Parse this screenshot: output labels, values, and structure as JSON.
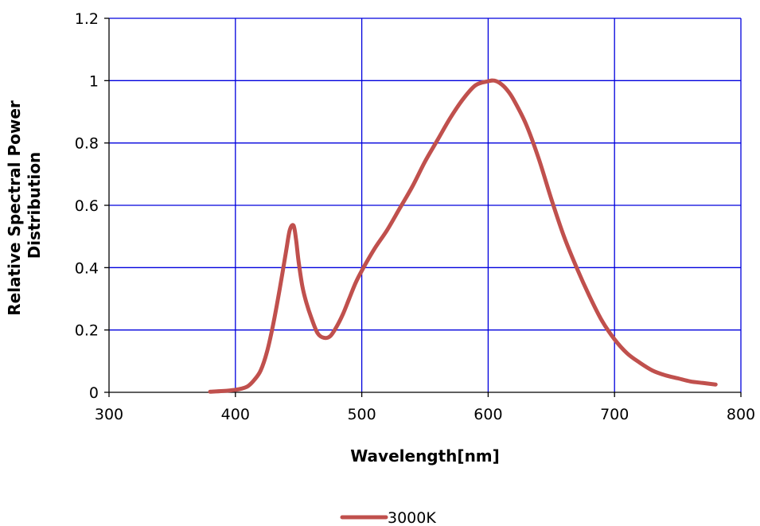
{
  "chart_data": {
    "type": "line",
    "title": "",
    "xlabel": "Wavelength[nm]",
    "ylabel_lines": [
      "Relative Spectral Power",
      "Distribution"
    ],
    "xlim": [
      300,
      800
    ],
    "ylim": [
      0,
      1.2
    ],
    "xticks": [
      300,
      400,
      500,
      600,
      700,
      800
    ],
    "xtick_labels": [
      "300",
      "400",
      "500",
      "600",
      "700",
      "800"
    ],
    "yticks": [
      0,
      0.2,
      0.4,
      0.6,
      0.8,
      1.0,
      1.2
    ],
    "ytick_labels": [
      "0",
      "0.2",
      "0.4",
      "0.6",
      "0.8",
      "1",
      "1.2"
    ],
    "grid": true,
    "legend_position": "bottom-center",
    "colors": {
      "grid": "#0000dd",
      "axis": "#000000",
      "series": "#c0504d"
    },
    "series": [
      {
        "name": "3000K",
        "x": [
          380,
          390,
          400,
          405,
          410,
          415,
          420,
          425,
          430,
          435,
          440,
          443,
          446,
          448,
          450,
          453,
          456,
          460,
          465,
          470,
          475,
          480,
          485,
          490,
          495,
          500,
          510,
          520,
          530,
          540,
          550,
          560,
          570,
          580,
          590,
          600,
          605,
          610,
          615,
          620,
          630,
          640,
          650,
          660,
          670,
          680,
          690,
          700,
          710,
          720,
          730,
          740,
          750,
          760,
          770,
          780
        ],
        "y": [
          0.002,
          0.004,
          0.008,
          0.012,
          0.02,
          0.04,
          0.07,
          0.13,
          0.22,
          0.33,
          0.45,
          0.52,
          0.535,
          0.49,
          0.42,
          0.34,
          0.29,
          0.24,
          0.19,
          0.175,
          0.18,
          0.21,
          0.25,
          0.3,
          0.35,
          0.39,
          0.46,
          0.52,
          0.59,
          0.66,
          0.74,
          0.81,
          0.88,
          0.94,
          0.985,
          0.998,
          1.0,
          0.99,
          0.97,
          0.94,
          0.86,
          0.75,
          0.62,
          0.5,
          0.4,
          0.31,
          0.23,
          0.17,
          0.125,
          0.095,
          0.07,
          0.055,
          0.045,
          0.035,
          0.03,
          0.025
        ]
      }
    ]
  }
}
